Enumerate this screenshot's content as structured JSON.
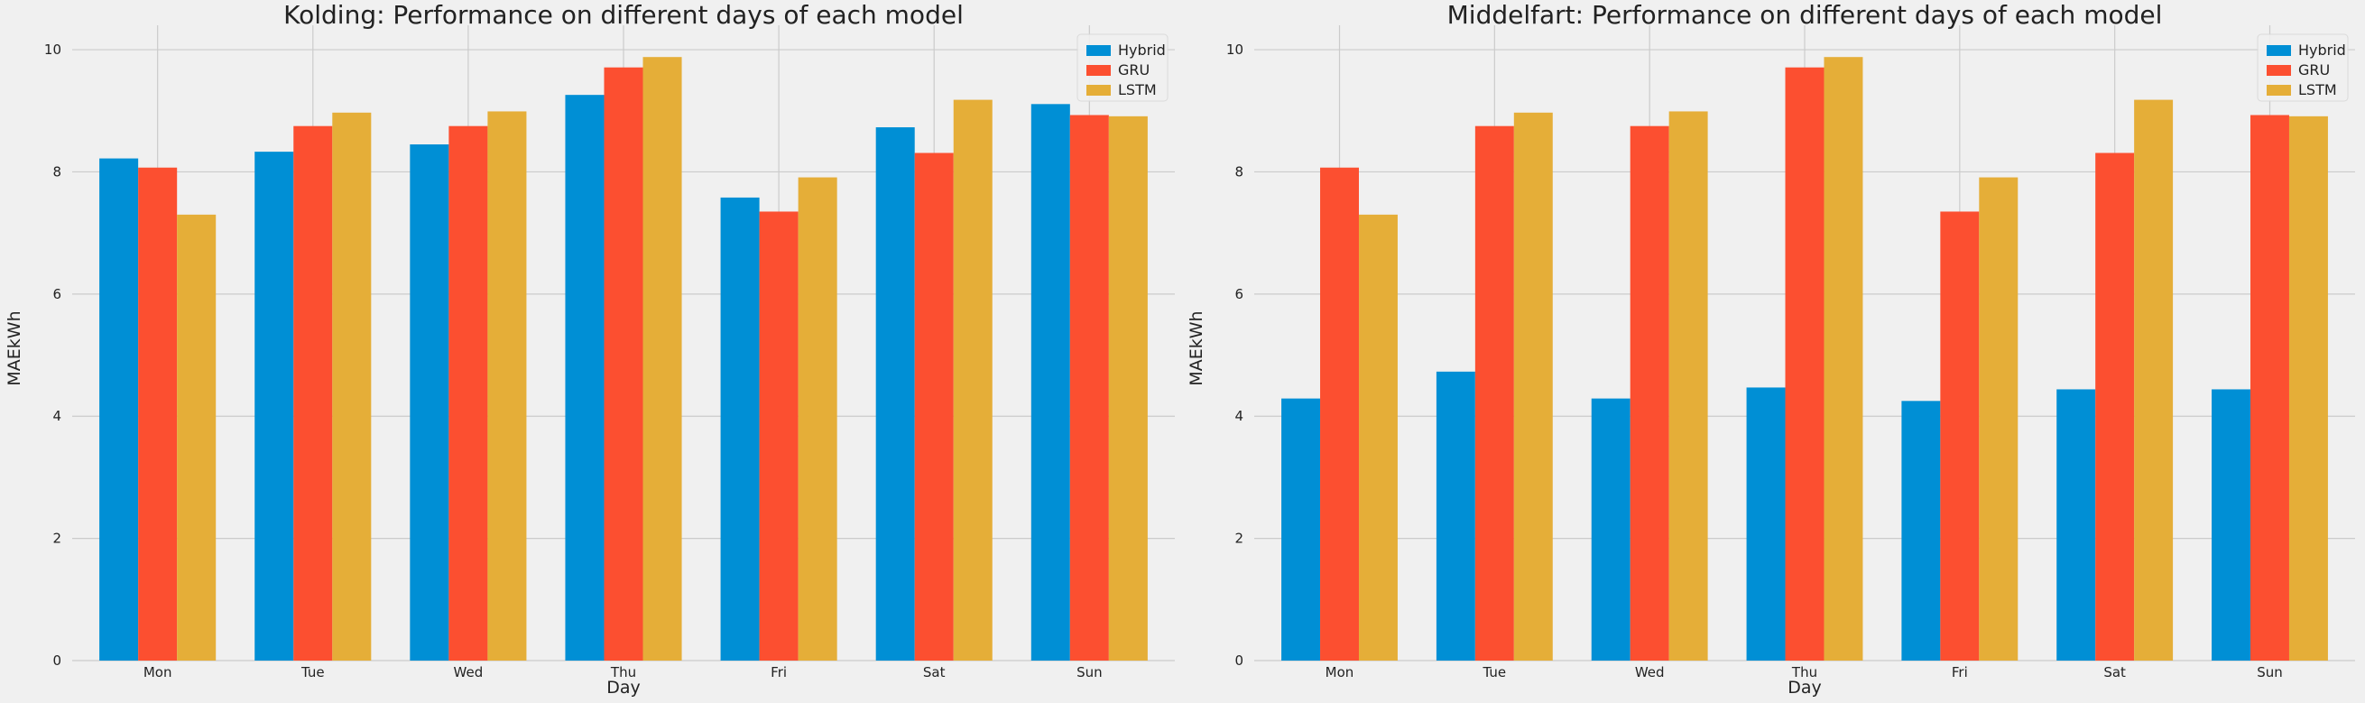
{
  "colors": {
    "Hybrid": "#008fd5",
    "GRU": "#fc4f30",
    "LSTM": "#e5ae38"
  },
  "chart_data": [
    {
      "type": "bar",
      "title": "Kolding: Performance on different days of each model",
      "xlabel": "Day",
      "ylabel": "MAEkWh",
      "categories": [
        "Mon",
        "Tue",
        "Wed",
        "Thu",
        "Fri",
        "Sat",
        "Sun"
      ],
      "yticks": [
        0,
        2,
        4,
        6,
        8,
        10
      ],
      "ylim": [
        0,
        10.4
      ],
      "grid": true,
      "legend": "top-right",
      "series": [
        {
          "name": "Hybrid",
          "values": [
            8.22,
            8.33,
            8.45,
            9.26,
            7.58,
            8.73,
            9.11
          ]
        },
        {
          "name": "GRU",
          "values": [
            8.07,
            8.75,
            8.75,
            9.71,
            7.35,
            8.31,
            8.93
          ]
        },
        {
          "name": "LSTM",
          "values": [
            7.3,
            8.97,
            8.99,
            9.88,
            7.91,
            9.18,
            8.91
          ]
        }
      ]
    },
    {
      "type": "bar",
      "title": "Middelfart: Performance on different days of each model",
      "xlabel": "Day",
      "ylabel": "MAEkWh",
      "categories": [
        "Mon",
        "Tue",
        "Wed",
        "Thu",
        "Fri",
        "Sat",
        "Sun"
      ],
      "yticks": [
        0,
        2,
        4,
        6,
        8,
        10
      ],
      "ylim": [
        0,
        10.4
      ],
      "grid": true,
      "legend": "top-right",
      "series": [
        {
          "name": "Hybrid",
          "values": [
            4.29,
            4.73,
            4.29,
            4.47,
            4.25,
            4.44,
            4.44
          ]
        },
        {
          "name": "GRU",
          "values": [
            8.07,
            8.75,
            8.75,
            9.71,
            7.35,
            8.31,
            8.93
          ]
        },
        {
          "name": "LSTM",
          "values": [
            7.3,
            8.97,
            8.99,
            9.88,
            7.91,
            9.18,
            8.91
          ]
        }
      ]
    }
  ]
}
